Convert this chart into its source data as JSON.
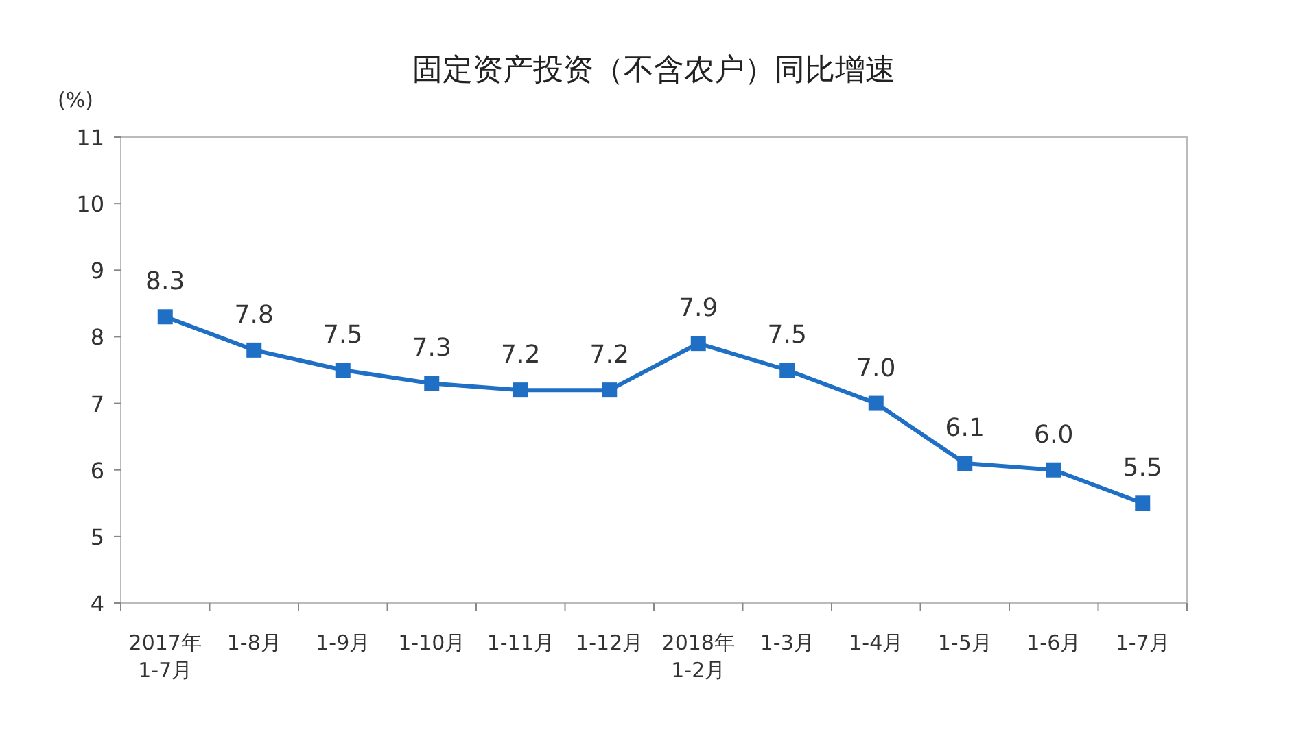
{
  "chart_data": {
    "type": "line",
    "title": "固定资产投资（不含农户）同比增速",
    "ylabel": "(%)",
    "categories": [
      "2017年\n1-7月",
      "1-8月",
      "1-9月",
      "1-10月",
      "1-11月",
      "1-12月",
      "2018年\n1-2月",
      "1-3月",
      "1-4月",
      "1-5月",
      "1-6月",
      "1-7月"
    ],
    "series": [
      {
        "color": "#1f6fc5",
        "values": [
          8.3,
          7.8,
          7.5,
          7.3,
          7.2,
          7.2,
          7.9,
          7.5,
          7.0,
          6.1,
          6.0,
          5.5
        ],
        "value_labels": [
          "8.3",
          "7.8",
          "7.5",
          "7.3",
          "7.2",
          "7.2",
          "7.9",
          "7.5",
          "7.0",
          "6.1",
          "6.0",
          "5.5"
        ]
      }
    ],
    "ylim": [
      4,
      11
    ],
    "yticks": [
      4,
      5,
      6,
      7,
      8,
      9,
      10,
      11
    ],
    "marker": "square",
    "grid": false
  }
}
